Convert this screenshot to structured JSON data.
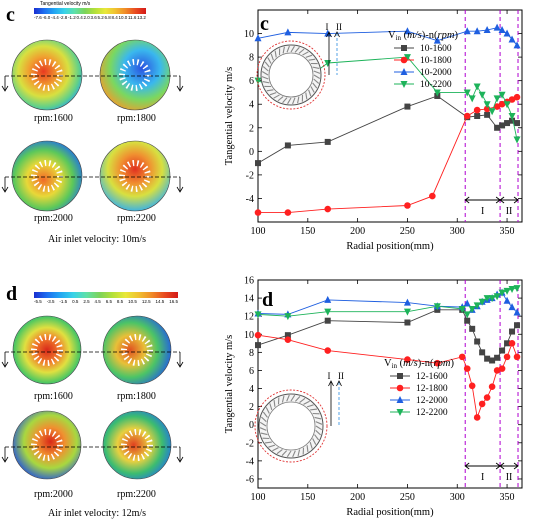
{
  "top_left": {
    "panel_letter": "c",
    "colorbar_title": "Tangential velocity m/s",
    "colorbar_ticks": [
      "-7.6",
      "-6.0",
      "-4.4",
      "-2.8",
      "-1.2",
      "0.4",
      "2.0",
      "3.6",
      "5.2",
      "6.8",
      "8.4",
      "10.0",
      "11.6",
      "13.2"
    ],
    "rpm_labels": [
      "rpm:1600",
      "rpm:1800",
      "rpm:2000",
      "rpm:2200"
    ],
    "caption": "Air inlet velocity: 10m/s"
  },
  "bottom_left": {
    "panel_letter": "d",
    "colorbar_ticks": [
      "-5.5",
      "-3.5",
      "-1.5",
      "0.5",
      "2.5",
      "4.5",
      "6.5",
      "8.5",
      "10.5",
      "12.5",
      "14.5",
      "16.5"
    ],
    "rpm_labels": [
      "rpm:1600",
      "rpm:1800",
      "rpm:2000",
      "rpm:2200"
    ],
    "caption": "Air inlet velocity: 12m/s"
  },
  "colors": {
    "s1600": "#444444",
    "s1800": "#ff2020",
    "s2000": "#1f5fe0",
    "s2200": "#1db35a",
    "zone": "#b000d0"
  },
  "chart_data": [
    {
      "type": "line",
      "panel_letter": "c",
      "xlabel": "Radial position(mm)",
      "ylabel": "Tangential velocity m/s",
      "xlim": [
        100,
        365
      ],
      "ylim": [
        -6,
        12
      ],
      "xticks": [
        100,
        150,
        200,
        250,
        300,
        350
      ],
      "yticks": [
        -4,
        -2,
        0,
        2,
        4,
        6,
        8,
        10
      ],
      "legend_title": "V_in (m/s)-n(rpm)",
      "legend_position": "top-right",
      "zone_lines": [
        308,
        343,
        361
      ],
      "zone_labels": [
        "I",
        "II"
      ],
      "series": [
        {
          "name": "10-1600",
          "marker": "square",
          "color": "#444444",
          "x": [
            100,
            130,
            170,
            250,
            280,
            310,
            320,
            330,
            340,
            345,
            350,
            355,
            360
          ],
          "y": [
            -1,
            0.5,
            0.8,
            3.8,
            4.7,
            2.9,
            3.0,
            3.1,
            2.0,
            2.2,
            2.4,
            2.6,
            2.4
          ]
        },
        {
          "name": "10-1800",
          "marker": "circle",
          "color": "#ff2020",
          "x": [
            100,
            130,
            170,
            250,
            275,
            310,
            320,
            330,
            340,
            345,
            350,
            355,
            360
          ],
          "y": [
            -5.2,
            -5.2,
            -4.9,
            -4.6,
            -3.8,
            3.0,
            3.5,
            3.6,
            3.8,
            4.0,
            4.2,
            4.4,
            4.6
          ]
        },
        {
          "name": "10-2000",
          "marker": "triangle-up",
          "color": "#1f5fe0",
          "x": [
            100,
            130,
            170,
            250,
            280,
            310,
            320,
            330,
            340,
            345,
            350,
            355,
            360
          ],
          "y": [
            9.6,
            10.1,
            10.0,
            10.2,
            9.4,
            10.2,
            10.2,
            10.3,
            10.5,
            10.3,
            10.0,
            9.5,
            9.0
          ]
        },
        {
          "name": "10-2200",
          "marker": "triangle-down",
          "color": "#1db35a",
          "x": [
            100,
            130,
            170,
            250,
            280,
            310,
            315,
            320,
            325,
            330,
            335,
            340,
            345,
            350,
            355,
            360
          ],
          "y": [
            6.0,
            5.0,
            7.5,
            8.0,
            5.0,
            5.0,
            4.5,
            5.5,
            4.8,
            4.0,
            3.4,
            4.5,
            4.8,
            4.0,
            3.0,
            1.0
          ]
        }
      ]
    },
    {
      "type": "line",
      "panel_letter": "d",
      "xlabel": "Radial position(mm)",
      "ylabel": "Tangential velocity m/s",
      "xlim": [
        100,
        365
      ],
      "ylim": [
        -7,
        16
      ],
      "xticks": [
        100,
        150,
        200,
        250,
        300,
        350
      ],
      "yticks": [
        -6,
        -4,
        -2,
        0,
        2,
        4,
        6,
        8,
        10,
        12,
        14,
        16
      ],
      "legend_title": "V_in (m/s)-n(rpm)",
      "legend_position": "bottom-right",
      "zone_lines": [
        308,
        343,
        361
      ],
      "zone_labels": [
        "I",
        "II"
      ],
      "series": [
        {
          "name": "12-1600",
          "marker": "square",
          "color": "#444444",
          "x": [
            100,
            130,
            170,
            250,
            280,
            305,
            310,
            315,
            320,
            325,
            330,
            335,
            340,
            345,
            350,
            355,
            360
          ],
          "y": [
            8.8,
            9.9,
            11.5,
            11.3,
            12.7,
            12.7,
            11.5,
            10.6,
            9.2,
            8.0,
            7.3,
            7.1,
            7.4,
            8.2,
            9.0,
            10.3,
            11.0
          ]
        },
        {
          "name": "12-1800",
          "marker": "circle",
          "color": "#ff2020",
          "x": [
            100,
            130,
            170,
            250,
            280,
            305,
            310,
            315,
            320,
            325,
            330,
            335,
            340,
            345,
            350,
            355,
            360
          ],
          "y": [
            9.9,
            9.4,
            8.2,
            7.2,
            6.8,
            7.5,
            6.2,
            4.3,
            0.8,
            2.3,
            3.0,
            4.2,
            6.0,
            6.2,
            7.5,
            9.0,
            7.5
          ]
        },
        {
          "name": "12-2000",
          "marker": "triangle-up",
          "color": "#1f5fe0",
          "x": [
            100,
            130,
            170,
            250,
            280,
            305,
            310,
            315,
            320,
            325,
            330,
            335,
            340,
            345,
            350,
            355,
            360
          ],
          "y": [
            12.3,
            12.2,
            13.8,
            13.5,
            13.1,
            13.0,
            13.4,
            12.7,
            13.1,
            13.6,
            13.8,
            14.0,
            14.4,
            14.6,
            13.7,
            13.0,
            12.4
          ]
        },
        {
          "name": "12-2200",
          "marker": "triangle-down",
          "color": "#1db35a",
          "x": [
            100,
            130,
            170,
            250,
            280,
            305,
            310,
            315,
            320,
            325,
            330,
            335,
            340,
            345,
            350,
            355,
            360
          ],
          "y": [
            12.2,
            12.0,
            12.5,
            12.5,
            13.1,
            12.8,
            12.2,
            12.8,
            13.2,
            13.6,
            14.0,
            14.0,
            14.2,
            14.6,
            14.8,
            15.0,
            15.1
          ]
        }
      ]
    }
  ]
}
